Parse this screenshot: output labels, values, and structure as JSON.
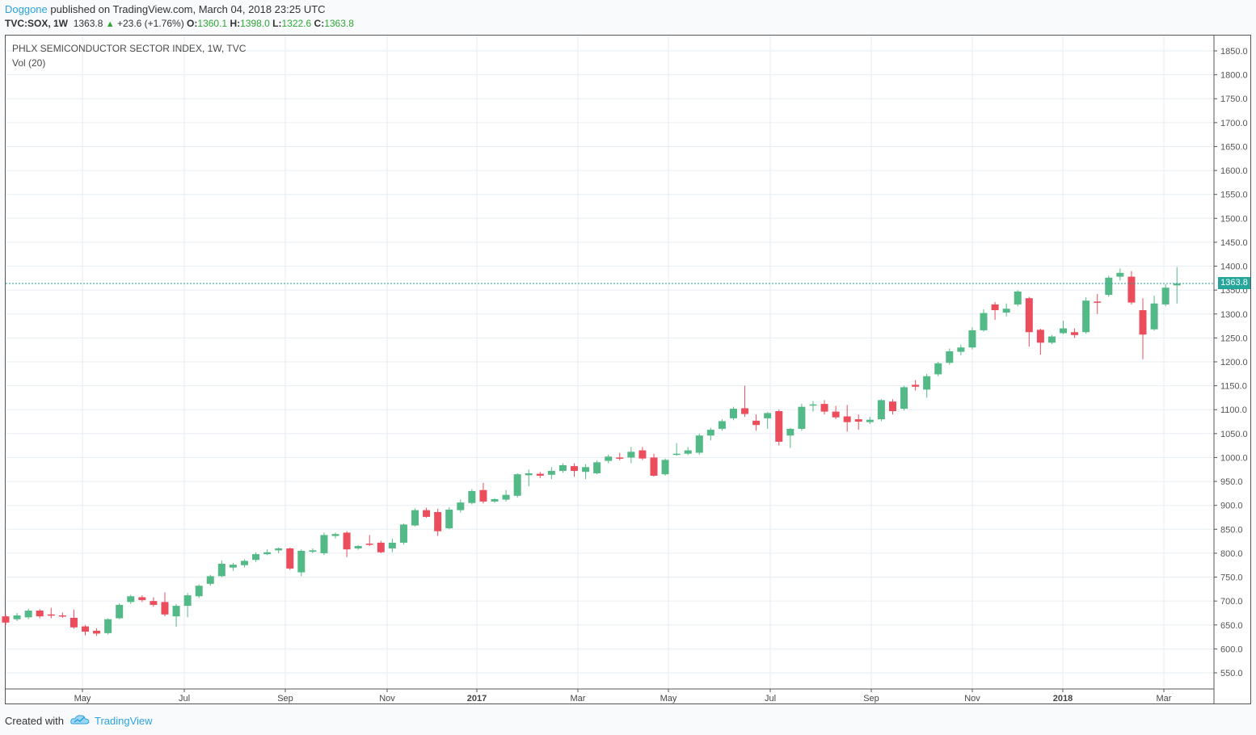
{
  "header": {
    "author": "Doggone",
    "published_text": "published on TradingView.com, March 04, 2018 23:25 UTC"
  },
  "quote": {
    "symbol": "TVC:SOX, 1W",
    "last": "1363.8",
    "change": "+23.6 (+1.76%)",
    "open_label": "O:",
    "open": "1360.1",
    "high_label": "H:",
    "high": "1398.0",
    "low_label": "L:",
    "low": "1322.6",
    "close_label": "C:",
    "close": "1363.8"
  },
  "legend": {
    "title": "PHLX SEMICONDUCTOR SECTOR INDEX, 1W, TVC",
    "volume": "Vol (20)"
  },
  "price_tag": "1363.8",
  "footer": {
    "created_with": "Created with",
    "brand": "TradingView"
  },
  "colors": {
    "up": "#53b987",
    "down": "#eb4d5c",
    "grid": "#e6edf3",
    "last_line": "#26a69a"
  },
  "chart_data": {
    "type": "candlestick",
    "y_axis_ticks": [
      "550.0",
      "600.0",
      "650.0",
      "700.0",
      "750.0",
      "800.0",
      "850.0",
      "900.0",
      "950.0",
      "1000.0",
      "1050.0",
      "1100.0",
      "1150.0",
      "1200.0",
      "1250.0",
      "1300.0",
      "1350.0",
      "1400.0",
      "1450.0",
      "1500.0",
      "1550.0",
      "1600.0",
      "1650.0",
      "1700.0",
      "1750.0",
      "1800.0",
      "1850.0"
    ],
    "x_axis_labels": [
      "May",
      "Jul",
      "Sep",
      "Nov",
      "2017",
      "Mar",
      "May",
      "Jul",
      "Sep",
      "Nov",
      "2018",
      "Mar"
    ],
    "ylim": [
      525,
      1870
    ],
    "last_value": 1363.8,
    "candles": [
      [
        668,
        655,
        672,
        650
      ],
      [
        662,
        670,
        675,
        658
      ],
      [
        666,
        680,
        684,
        662
      ],
      [
        680,
        668,
        683,
        664
      ],
      [
        672,
        670,
        686,
        664
      ],
      [
        670,
        668,
        676,
        665
      ],
      [
        665,
        645,
        682,
        642
      ],
      [
        647,
        636,
        650,
        628
      ],
      [
        638,
        632,
        643,
        627
      ],
      [
        633,
        662,
        664,
        630
      ],
      [
        664,
        692,
        695,
        662
      ],
      [
        698,
        710,
        713,
        694
      ],
      [
        708,
        702,
        712,
        698
      ],
      [
        700,
        692,
        708,
        688
      ],
      [
        698,
        672,
        718,
        668
      ],
      [
        668,
        690,
        694,
        646
      ],
      [
        690,
        712,
        717,
        666
      ],
      [
        710,
        732,
        735,
        706
      ],
      [
        736,
        752,
        755,
        732
      ],
      [
        752,
        778,
        785,
        750
      ],
      [
        770,
        776,
        780,
        763
      ],
      [
        775,
        784,
        787,
        770
      ],
      [
        786,
        798,
        802,
        782
      ],
      [
        798,
        802,
        808,
        796
      ],
      [
        806,
        810,
        812,
        800
      ],
      [
        810,
        768,
        812,
        765
      ],
      [
        760,
        805,
        808,
        752
      ],
      [
        803,
        806,
        810,
        800
      ],
      [
        800,
        838,
        843,
        796
      ],
      [
        836,
        840,
        843,
        831
      ],
      [
        843,
        808,
        846,
        792
      ],
      [
        810,
        815,
        817,
        807
      ],
      [
        820,
        818,
        838,
        815
      ],
      [
        822,
        802,
        826,
        800
      ],
      [
        810,
        822,
        830,
        802
      ],
      [
        822,
        860,
        862,
        818
      ],
      [
        858,
        890,
        894,
        856
      ],
      [
        890,
        876,
        895,
        874
      ],
      [
        886,
        846,
        893,
        836
      ],
      [
        852,
        891,
        896,
        850
      ],
      [
        890,
        906,
        912,
        885
      ],
      [
        905,
        930,
        934,
        902
      ],
      [
        932,
        908,
        947,
        904
      ],
      [
        908,
        913,
        915,
        905
      ],
      [
        912,
        922,
        932,
        908
      ],
      [
        920,
        965,
        967,
        916
      ],
      [
        963,
        967,
        975,
        940
      ],
      [
        966,
        962,
        970,
        957
      ],
      [
        964,
        972,
        980,
        955
      ],
      [
        972,
        984,
        988,
        968
      ],
      [
        982,
        972,
        988,
        960
      ],
      [
        970,
        980,
        986,
        955
      ],
      [
        967,
        990,
        994,
        965
      ],
      [
        993,
        1002,
        1006,
        988
      ],
      [
        1000,
        998,
        1010,
        994
      ],
      [
        1000,
        1012,
        1022,
        988
      ],
      [
        1015,
        998,
        1022,
        995
      ],
      [
        1000,
        962,
        1008,
        960
      ],
      [
        965,
        995,
        998,
        962
      ],
      [
        1006,
        1008,
        1030,
        1004
      ],
      [
        1008,
        1015,
        1022,
        1005
      ],
      [
        1010,
        1046,
        1050,
        1006
      ],
      [
        1046,
        1058,
        1062,
        1036
      ],
      [
        1060,
        1076,
        1080,
        1056
      ],
      [
        1082,
        1102,
        1106,
        1078
      ],
      [
        1103,
        1091,
        1150,
        1085
      ],
      [
        1077,
        1068,
        1090,
        1056
      ],
      [
        1082,
        1093,
        1095,
        1060
      ],
      [
        1097,
        1033,
        1100,
        1025
      ],
      [
        1046,
        1060,
        1062,
        1020
      ],
      [
        1060,
        1106,
        1112,
        1056
      ],
      [
        1110,
        1111,
        1118,
        1096
      ],
      [
        1112,
        1096,
        1120,
        1090
      ],
      [
        1096,
        1084,
        1108,
        1080
      ],
      [
        1086,
        1074,
        1110,
        1054
      ],
      [
        1080,
        1075,
        1090,
        1058
      ],
      [
        1074,
        1079,
        1085,
        1070
      ],
      [
        1080,
        1120,
        1122,
        1076
      ],
      [
        1117,
        1097,
        1122,
        1090
      ],
      [
        1102,
        1147,
        1150,
        1098
      ],
      [
        1152,
        1148,
        1162,
        1140
      ],
      [
        1142,
        1170,
        1175,
        1125
      ],
      [
        1174,
        1197,
        1200,
        1170
      ],
      [
        1198,
        1222,
        1228,
        1194
      ],
      [
        1221,
        1230,
        1236,
        1214
      ],
      [
        1230,
        1266,
        1272,
        1226
      ],
      [
        1266,
        1302,
        1310,
        1263
      ],
      [
        1320,
        1308,
        1325,
        1288
      ],
      [
        1303,
        1311,
        1322,
        1295
      ],
      [
        1320,
        1347,
        1350,
        1316
      ],
      [
        1333,
        1262,
        1336,
        1232
      ],
      [
        1267,
        1240,
        1269,
        1215
      ],
      [
        1240,
        1253,
        1256,
        1237
      ],
      [
        1260,
        1270,
        1286,
        1258
      ],
      [
        1262,
        1256,
        1270,
        1250
      ],
      [
        1262,
        1328,
        1335,
        1259
      ],
      [
        1326,
        1324,
        1342,
        1300
      ],
      [
        1340,
        1376,
        1380,
        1336
      ],
      [
        1378,
        1386,
        1395,
        1370
      ],
      [
        1378,
        1324,
        1390,
        1320
      ],
      [
        1308,
        1257,
        1333,
        1205
      ],
      [
        1268,
        1322,
        1338,
        1265
      ],
      [
        1320,
        1355,
        1362,
        1316
      ],
      [
        1360,
        1364,
        1398,
        1322
      ]
    ]
  }
}
